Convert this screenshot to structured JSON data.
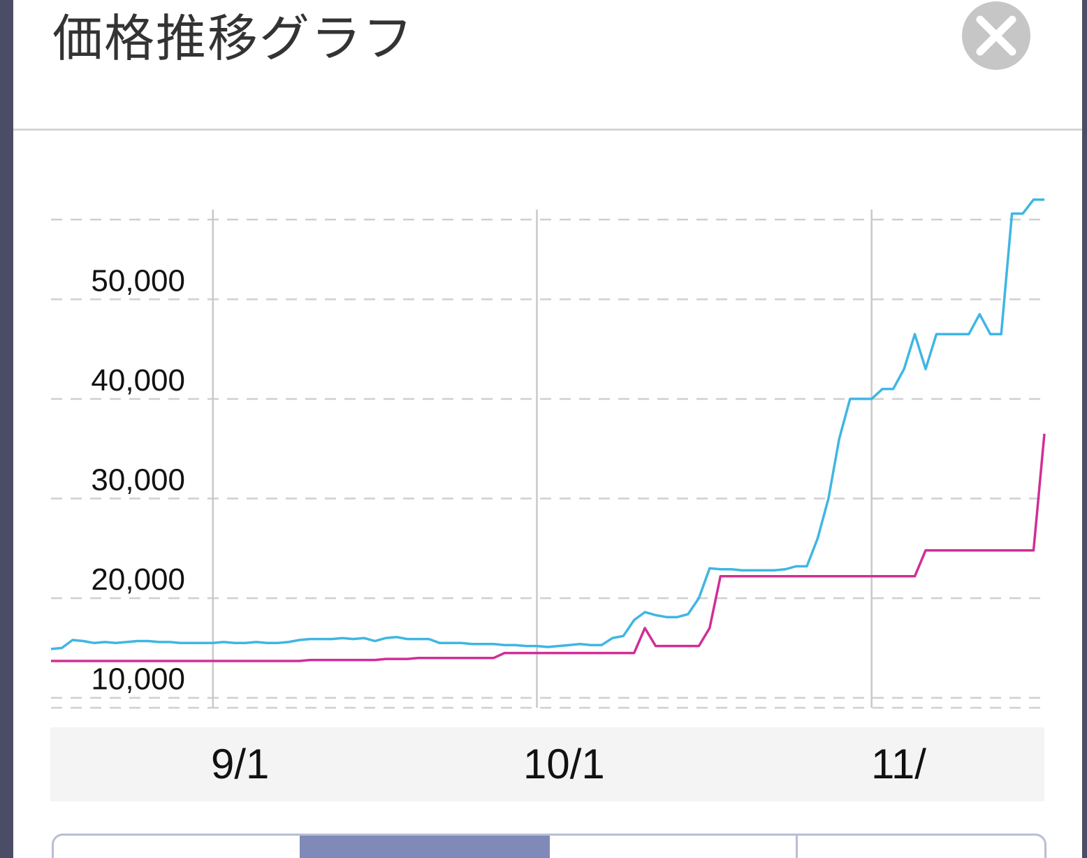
{
  "modal": {
    "title": "価格推移グラフ"
  },
  "chart_data": {
    "type": "line",
    "title": "",
    "xlabel": "",
    "ylabel": "",
    "x_tick_labels": [
      "9/1",
      "10/1",
      "11/"
    ],
    "y_tick_labels": [
      "10,000",
      "20,000",
      "30,000",
      "40,000",
      "50,000"
    ],
    "y_ticks": [
      10000,
      20000,
      30000,
      40000,
      50000
    ],
    "ylim": [
      9000,
      59000
    ],
    "x_unit": "day index",
    "x_dates": {
      "9/1": 15,
      "10/1": 45,
      "11/": 76
    },
    "xlim": [
      0,
      92
    ],
    "grid": true,
    "series": [
      {
        "color": "#3fb6e3",
        "points": [
          [
            0,
            14900
          ],
          [
            1,
            15000
          ],
          [
            2,
            15800
          ],
          [
            3,
            15700
          ],
          [
            4,
            15500
          ],
          [
            5,
            15600
          ],
          [
            6,
            15500
          ],
          [
            7,
            15600
          ],
          [
            8,
            15700
          ],
          [
            9,
            15700
          ],
          [
            10,
            15600
          ],
          [
            11,
            15600
          ],
          [
            12,
            15500
          ],
          [
            13,
            15500
          ],
          [
            14,
            15500
          ],
          [
            15,
            15500
          ],
          [
            16,
            15600
          ],
          [
            17,
            15500
          ],
          [
            18,
            15500
          ],
          [
            19,
            15600
          ],
          [
            20,
            15500
          ],
          [
            21,
            15500
          ],
          [
            22,
            15600
          ],
          [
            23,
            15800
          ],
          [
            24,
            15900
          ],
          [
            25,
            15900
          ],
          [
            26,
            15900
          ],
          [
            27,
            16000
          ],
          [
            28,
            15900
          ],
          [
            29,
            16000
          ],
          [
            30,
            15700
          ],
          [
            31,
            16000
          ],
          [
            32,
            16100
          ],
          [
            33,
            15900
          ],
          [
            34,
            15900
          ],
          [
            35,
            15900
          ],
          [
            36,
            15500
          ],
          [
            37,
            15500
          ],
          [
            38,
            15500
          ],
          [
            39,
            15400
          ],
          [
            40,
            15400
          ],
          [
            41,
            15400
          ],
          [
            42,
            15300
          ],
          [
            43,
            15300
          ],
          [
            44,
            15200
          ],
          [
            45,
            15200
          ],
          [
            46,
            15100
          ],
          [
            47,
            15200
          ],
          [
            48,
            15300
          ],
          [
            49,
            15400
          ],
          [
            50,
            15300
          ],
          [
            51,
            15300
          ],
          [
            52,
            16000
          ],
          [
            53,
            16200
          ],
          [
            54,
            17800
          ],
          [
            55,
            18600
          ],
          [
            56,
            18300
          ],
          [
            57,
            18100
          ],
          [
            58,
            18100
          ],
          [
            59,
            18400
          ],
          [
            60,
            20000
          ],
          [
            61,
            23000
          ],
          [
            62,
            22900
          ],
          [
            63,
            22900
          ],
          [
            64,
            22800
          ],
          [
            65,
            22800
          ],
          [
            66,
            22800
          ],
          [
            67,
            22800
          ],
          [
            68,
            22900
          ],
          [
            69,
            23200
          ],
          [
            70,
            23200
          ],
          [
            71,
            26000
          ],
          [
            72,
            30000
          ],
          [
            73,
            36000
          ],
          [
            74,
            40000
          ],
          [
            75,
            40000
          ],
          [
            76,
            40000
          ],
          [
            77,
            41000
          ],
          [
            78,
            41000
          ],
          [
            79,
            43000
          ],
          [
            80,
            46500
          ],
          [
            81,
            43000
          ],
          [
            82,
            46500
          ],
          [
            83,
            46500
          ],
          [
            84,
            46500
          ],
          [
            85,
            46500
          ],
          [
            86,
            48500
          ],
          [
            87,
            46500
          ],
          [
            88,
            46500
          ],
          [
            89,
            58600
          ],
          [
            90,
            58600
          ],
          [
            91,
            60000
          ],
          [
            92,
            60000
          ]
        ]
      },
      {
        "color": "#d12e96",
        "points": [
          [
            0,
            13700
          ],
          [
            10,
            13700
          ],
          [
            20,
            13700
          ],
          [
            23,
            13700
          ],
          [
            24,
            13800
          ],
          [
            30,
            13800
          ],
          [
            31,
            13900
          ],
          [
            33,
            13900
          ],
          [
            34,
            14000
          ],
          [
            41,
            14000
          ],
          [
            42,
            14500
          ],
          [
            50,
            14500
          ],
          [
            54,
            14500
          ],
          [
            55,
            17000
          ],
          [
            56,
            15200
          ],
          [
            60,
            15200
          ],
          [
            61,
            17000
          ],
          [
            62,
            22200
          ],
          [
            80,
            22200
          ],
          [
            81,
            24800
          ],
          [
            91,
            24800
          ],
          [
            92,
            36500
          ]
        ]
      }
    ]
  },
  "tabs": {
    "items": [
      {
        "label": ""
      },
      {
        "label": ""
      },
      {
        "label": ""
      },
      {
        "label": ""
      }
    ]
  },
  "colors": {
    "modal_bg": "#ffffff",
    "overlay": "#4b4c66",
    "series_blue": "#3fb6e3",
    "series_pink": "#d12e96",
    "tab_active": "#7f8ab8"
  }
}
